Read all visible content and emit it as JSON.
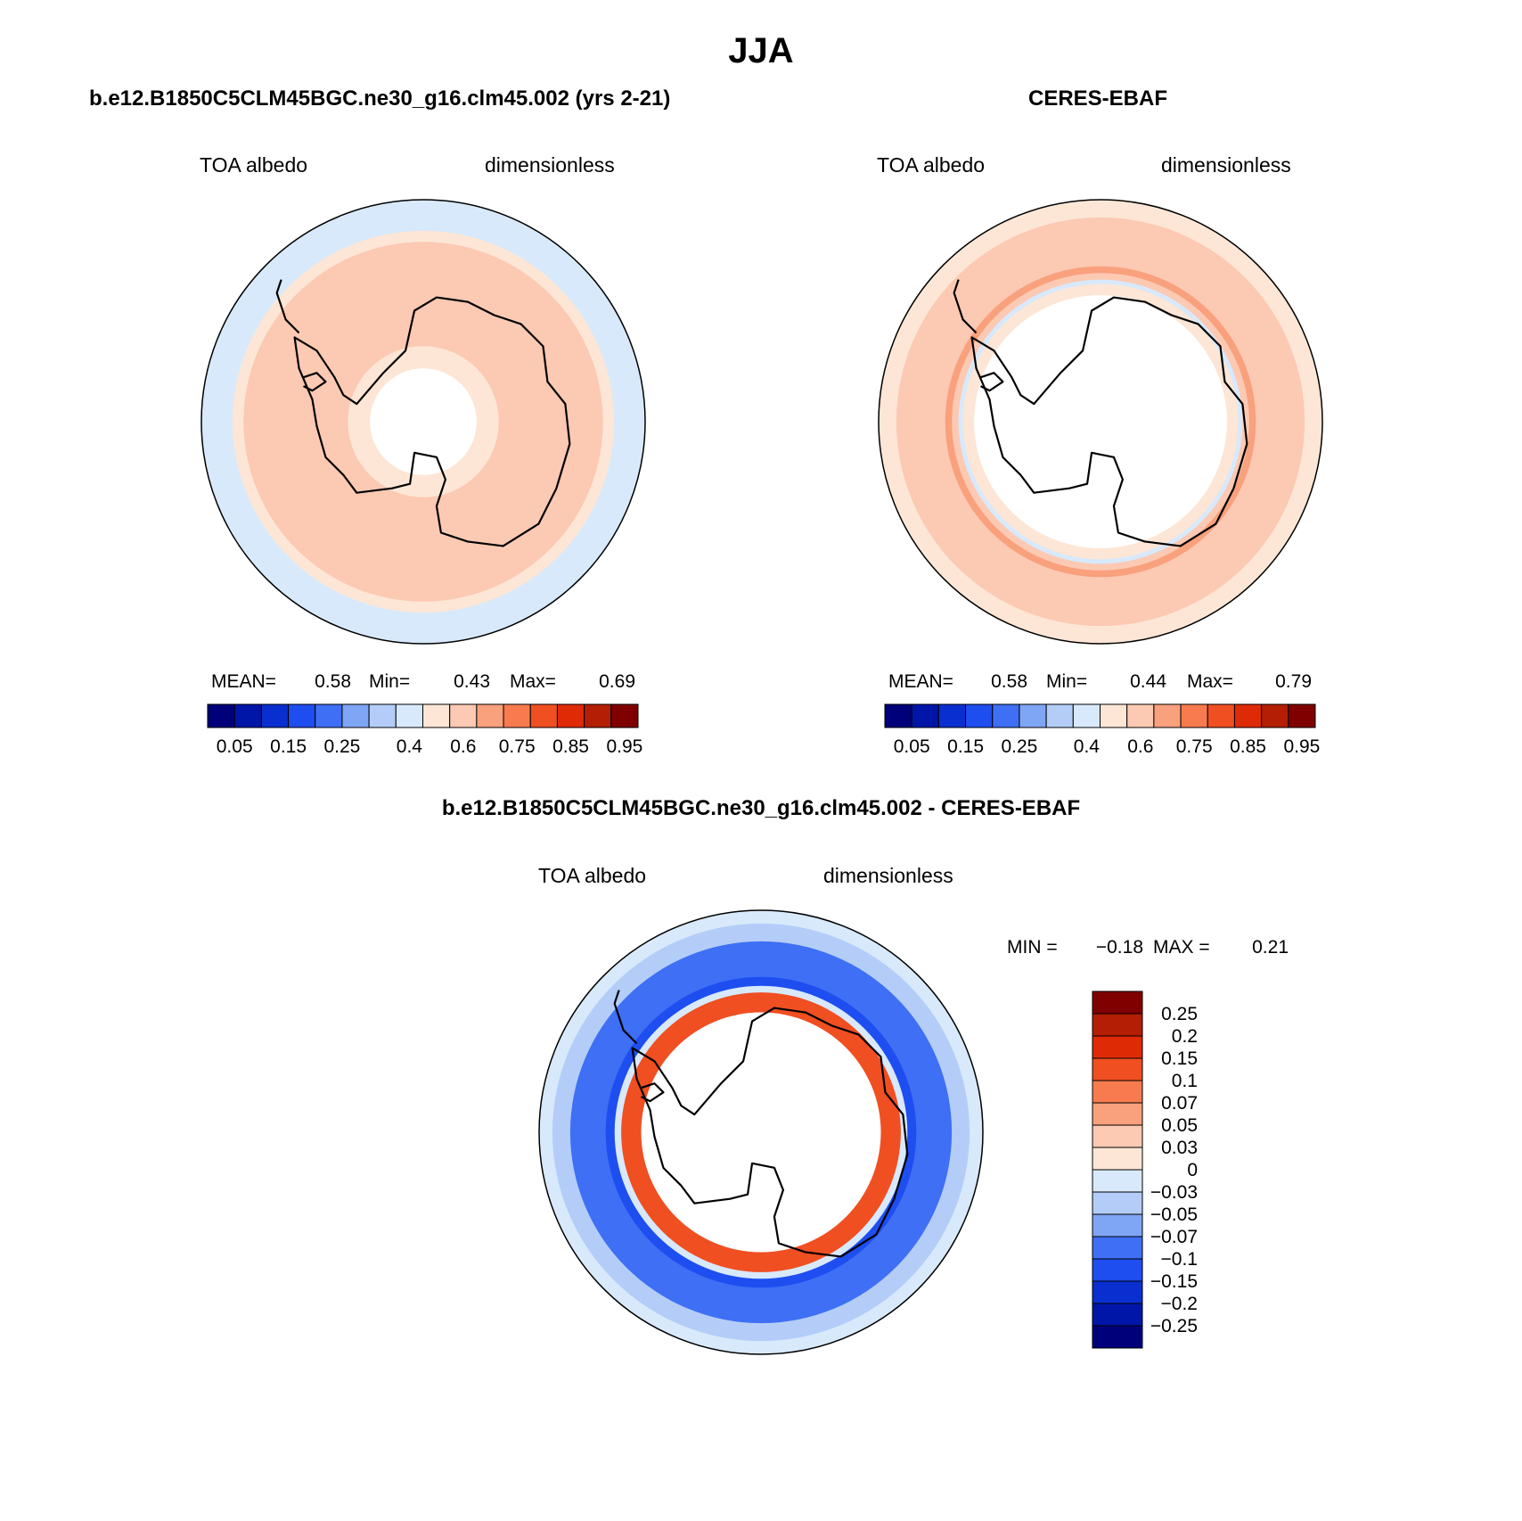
{
  "figure_title": "JJA",
  "chart_data": [
    {
      "type": "heatmap",
      "projection": "south-polar-stereographic",
      "title": "b.e12.B1850C5CLM45BGC.ne30_g16.clm45.002 (yrs 2-21)",
      "variable_label": "TOA albedo",
      "units_label": "dimensionless",
      "stats": {
        "mean_label": "MEAN=",
        "mean": "0.58",
        "min_label": "Min=",
        "min": "0.43",
        "max_label": "Max=",
        "max": "0.69"
      },
      "colorbar": {
        "orientation": "horizontal",
        "tick_labels": [
          "0.05",
          "0.15",
          "0.25",
          "0.4",
          "0.6",
          "0.75",
          "0.85",
          "0.95"
        ],
        "colors": [
          "#00007a",
          "#0016a8",
          "#0a2fd0",
          "#1e4df0",
          "#3e6ff5",
          "#7fa5f5",
          "#b3cdf8",
          "#d8e9fb",
          "#fde6d6",
          "#fcc9b3",
          "#f9a07c",
          "#f77b4e",
          "#f04f22",
          "#df2a06",
          "#b41e04",
          "#800000"
        ]
      },
      "bands": [
        {
          "r": 1.0,
          "color": "#d8e9fb"
        },
        {
          "r": 0.86,
          "color": "#fde6d6"
        },
        {
          "r": 0.81,
          "color": "#fcc9b3"
        },
        {
          "r": 0.34,
          "color": "#fde6d6"
        },
        {
          "r": 0.24,
          "color": "#ffffff"
        }
      ]
    },
    {
      "type": "heatmap",
      "projection": "south-polar-stereographic",
      "title": "CERES-EBAF",
      "variable_label": "TOA albedo",
      "units_label": "dimensionless",
      "stats": {
        "mean_label": "MEAN=",
        "mean": "0.58",
        "min_label": "Min=",
        "min": "0.44",
        "max_label": "Max=",
        "max": "0.79"
      },
      "colorbar": {
        "orientation": "horizontal",
        "tick_labels": [
          "0.05",
          "0.15",
          "0.25",
          "0.4",
          "0.6",
          "0.75",
          "0.85",
          "0.95"
        ],
        "colors": [
          "#00007a",
          "#0016a8",
          "#0a2fd0",
          "#1e4df0",
          "#3e6ff5",
          "#7fa5f5",
          "#b3cdf8",
          "#d8e9fb",
          "#fde6d6",
          "#fcc9b3",
          "#f9a07c",
          "#f77b4e",
          "#f04f22",
          "#df2a06",
          "#b41e04",
          "#800000"
        ]
      },
      "bands": [
        {
          "r": 1.0,
          "color": "#fde6d6"
        },
        {
          "r": 0.92,
          "color": "#fcc9b3"
        },
        {
          "r": 0.7,
          "color": "#f9a07c"
        },
        {
          "r": 0.67,
          "color": "#fcc9b3"
        },
        {
          "r": 0.64,
          "color": "#d8e9fb"
        },
        {
          "r": 0.62,
          "color": "#fde6d6"
        },
        {
          "r": 0.57,
          "color": "#ffffff"
        }
      ]
    },
    {
      "type": "heatmap",
      "projection": "south-polar-stereographic",
      "title": "b.e12.B1850C5CLM45BGC.ne30_g16.clm45.002 - CERES-EBAF",
      "variable_label": "TOA albedo",
      "units_label": "dimensionless",
      "stats": {
        "min_label": "MIN =",
        "min": "−0.18",
        "max_label": "MAX =",
        "max": "0.21"
      },
      "colorbar": {
        "orientation": "vertical",
        "tick_labels": [
          "0.25",
          "0.2",
          "0.15",
          "0.1",
          "0.07",
          "0.05",
          "0.03",
          "0",
          "−0.03",
          "−0.05",
          "−0.07",
          "−0.1",
          "−0.15",
          "−0.2",
          "−0.25"
        ],
        "colors": [
          "#800000",
          "#b41e04",
          "#df2a06",
          "#f04f22",
          "#f77b4e",
          "#f9a07c",
          "#fcc9b3",
          "#fde6d6",
          "#d8e9fb",
          "#b3cdf8",
          "#7fa5f5",
          "#3e6ff5",
          "#1e4df0",
          "#0a2fd0",
          "#0016a8",
          "#00007a"
        ]
      },
      "bands": [
        {
          "r": 1.0,
          "color": "#d8e9fb"
        },
        {
          "r": 0.94,
          "color": "#b3cdf8"
        },
        {
          "r": 0.86,
          "color": "#3e6ff5"
        },
        {
          "r": 0.7,
          "color": "#1e4df0"
        },
        {
          "r": 0.66,
          "color": "#d8e9fb"
        },
        {
          "r": 0.63,
          "color": "#f04f22"
        },
        {
          "r": 0.54,
          "color": "#ffffff"
        }
      ]
    }
  ]
}
